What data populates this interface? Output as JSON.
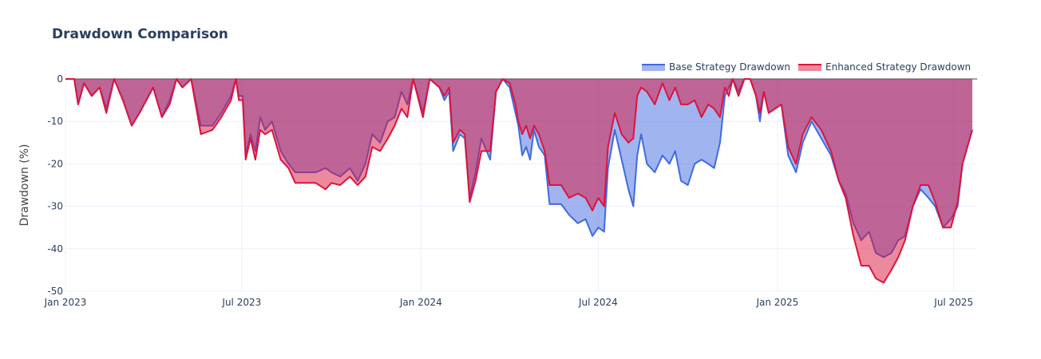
{
  "chart_data": {
    "type": "area",
    "title": "Drawdown Comparison",
    "xlabel": "",
    "ylabel": "Drawdown (%)",
    "ylim": [
      -50,
      0
    ],
    "yticks": [
      0,
      -10,
      -20,
      -30,
      -40,
      -50
    ],
    "xlim": [
      "2023-01-01",
      "2025-07-25"
    ],
    "xticks": [
      {
        "date": "2023-01-01",
        "label": "Jan 2023"
      },
      {
        "date": "2023-07-01",
        "label": "Jul 2023"
      },
      {
        "date": "2024-01-01",
        "label": "Jan 2024"
      },
      {
        "date": "2024-07-01",
        "label": "Jul 2024"
      },
      {
        "date": "2025-01-01",
        "label": "Jan 2025"
      },
      {
        "date": "2025-07-01",
        "label": "Jul 2025"
      }
    ],
    "grid": true,
    "legend_position": "top-right",
    "series": [
      {
        "name": "Base Strategy Drawdown",
        "color": "#4169e1",
        "fill": "rgba(65,105,225,0.5)",
        "points": [
          [
            "2023-01-01",
            0
          ],
          [
            "2023-01-10",
            0
          ],
          [
            "2023-01-14",
            -6
          ],
          [
            "2023-01-20",
            -1
          ],
          [
            "2023-01-28",
            -4
          ],
          [
            "2023-02-05",
            -2
          ],
          [
            "2023-02-12",
            -7
          ],
          [
            "2023-02-20",
            0
          ],
          [
            "2023-03-01",
            -5
          ],
          [
            "2023-03-10",
            -11
          ],
          [
            "2023-03-18",
            -8
          ],
          [
            "2023-03-25",
            -5
          ],
          [
            "2023-04-01",
            -2
          ],
          [
            "2023-04-10",
            -9
          ],
          [
            "2023-04-18",
            -5
          ],
          [
            "2023-04-25",
            0
          ],
          [
            "2023-05-01",
            -2
          ],
          [
            "2023-05-10",
            0
          ],
          [
            "2023-05-20",
            -11
          ],
          [
            "2023-06-01",
            -11
          ],
          [
            "2023-06-10",
            -8
          ],
          [
            "2023-06-20",
            -4
          ],
          [
            "2023-06-25",
            0
          ],
          [
            "2023-06-28",
            -4
          ],
          [
            "2023-07-02",
            -4
          ],
          [
            "2023-07-05",
            -18
          ],
          [
            "2023-07-10",
            -13
          ],
          [
            "2023-07-15",
            -17
          ],
          [
            "2023-07-20",
            -9
          ],
          [
            "2023-07-25",
            -12
          ],
          [
            "2023-08-01",
            -10
          ],
          [
            "2023-08-10",
            -17
          ],
          [
            "2023-08-18",
            -20
          ],
          [
            "2023-08-25",
            -22
          ],
          [
            "2023-09-01",
            -22
          ],
          [
            "2023-09-15",
            -22
          ],
          [
            "2023-09-25",
            -21
          ],
          [
            "2023-10-01",
            -22
          ],
          [
            "2023-10-10",
            -23
          ],
          [
            "2023-10-20",
            -21
          ],
          [
            "2023-10-28",
            -24
          ],
          [
            "2023-11-05",
            -20
          ],
          [
            "2023-11-12",
            -13
          ],
          [
            "2023-11-20",
            -15
          ],
          [
            "2023-11-28",
            -10
          ],
          [
            "2023-12-05",
            -9
          ],
          [
            "2023-12-12",
            -3
          ],
          [
            "2023-12-18",
            -6
          ],
          [
            "2023-12-24",
            0
          ],
          [
            "2024-01-03",
            -8
          ],
          [
            "2024-01-10",
            0
          ],
          [
            "2024-01-20",
            -2
          ],
          [
            "2024-01-25",
            -5
          ],
          [
            "2024-01-30",
            -3
          ],
          [
            "2024-02-03",
            -17
          ],
          [
            "2024-02-10",
            -13
          ],
          [
            "2024-02-15",
            -14
          ],
          [
            "2024-02-20",
            -28
          ],
          [
            "2024-02-26",
            -22
          ],
          [
            "2024-03-03",
            -14
          ],
          [
            "2024-03-12",
            -19
          ],
          [
            "2024-03-18",
            -3
          ],
          [
            "2024-03-25",
            0
          ],
          [
            "2024-04-01",
            -2
          ],
          [
            "2024-04-07",
            -8
          ],
          [
            "2024-04-10",
            -11
          ],
          [
            "2024-04-14",
            -18
          ],
          [
            "2024-04-18",
            -16
          ],
          [
            "2024-04-22",
            -19
          ],
          [
            "2024-04-26",
            -12
          ],
          [
            "2024-05-01",
            -16
          ],
          [
            "2024-05-07",
            -18
          ],
          [
            "2024-05-12",
            -29.5
          ],
          [
            "2024-05-24",
            -29.5
          ],
          [
            "2024-06-01",
            -32
          ],
          [
            "2024-06-10",
            -34
          ],
          [
            "2024-06-18",
            -33
          ],
          [
            "2024-06-25",
            -37
          ],
          [
            "2024-07-01",
            -35
          ],
          [
            "2024-07-07",
            -36
          ],
          [
            "2024-07-11",
            -21
          ],
          [
            "2024-07-18",
            -12
          ],
          [
            "2024-07-25",
            -19
          ],
          [
            "2024-08-01",
            -26
          ],
          [
            "2024-08-06",
            -30
          ],
          [
            "2024-08-10",
            -18
          ],
          [
            "2024-08-14",
            -13
          ],
          [
            "2024-08-20",
            -20
          ],
          [
            "2024-08-28",
            -22
          ],
          [
            "2024-09-05",
            -18
          ],
          [
            "2024-09-12",
            -20
          ],
          [
            "2024-09-18",
            -17
          ],
          [
            "2024-09-24",
            -24
          ],
          [
            "2024-10-01",
            -25
          ],
          [
            "2024-10-08",
            -20
          ],
          [
            "2024-10-15",
            -19
          ],
          [
            "2024-10-22",
            -20
          ],
          [
            "2024-10-28",
            -21
          ],
          [
            "2024-11-03",
            -15
          ],
          [
            "2024-11-08",
            -4
          ],
          [
            "2024-11-12",
            -2
          ],
          [
            "2024-11-16",
            0
          ],
          [
            "2024-11-22",
            -3
          ],
          [
            "2024-11-28",
            0
          ],
          [
            "2024-12-04",
            0
          ],
          [
            "2024-12-10",
            -4
          ],
          [
            "2024-12-14",
            -10
          ],
          [
            "2024-12-18",
            -3
          ],
          [
            "2024-12-23",
            -8
          ],
          [
            "2025-01-05",
            -6
          ],
          [
            "2025-01-12",
            -18
          ],
          [
            "2025-01-20",
            -22
          ],
          [
            "2025-01-27",
            -15
          ],
          [
            "2025-02-05",
            -10
          ],
          [
            "2025-02-15",
            -14
          ],
          [
            "2025-02-25",
            -18
          ],
          [
            "2025-03-05",
            -24
          ],
          [
            "2025-03-12",
            -27
          ],
          [
            "2025-03-20",
            -34
          ],
          [
            "2025-03-28",
            -38
          ],
          [
            "2025-04-05",
            -36
          ],
          [
            "2025-04-12",
            -41
          ],
          [
            "2025-04-20",
            -42
          ],
          [
            "2025-04-28",
            -41
          ],
          [
            "2025-05-05",
            -38
          ],
          [
            "2025-05-12",
            -37
          ],
          [
            "2025-05-20",
            -30
          ],
          [
            "2025-05-28",
            -26
          ],
          [
            "2025-06-05",
            -28
          ],
          [
            "2025-06-12",
            -30
          ],
          [
            "2025-06-20",
            -35
          ],
          [
            "2025-06-28",
            -33
          ],
          [
            "2025-07-05",
            -30
          ],
          [
            "2025-07-10",
            -20
          ],
          [
            "2025-07-15",
            -16
          ],
          [
            "2025-07-20",
            -12
          ]
        ]
      },
      {
        "name": "Enhanced Strategy Drawdown",
        "color": "#dc143c",
        "fill": "rgba(220,20,60,0.5)",
        "points": [
          [
            "2023-01-01",
            0
          ],
          [
            "2023-01-10",
            0
          ],
          [
            "2023-01-14",
            -6
          ],
          [
            "2023-01-20",
            -1
          ],
          [
            "2023-01-28",
            -4
          ],
          [
            "2023-02-05",
            -2
          ],
          [
            "2023-02-12",
            -8
          ],
          [
            "2023-02-20",
            0
          ],
          [
            "2023-03-01",
            -5
          ],
          [
            "2023-03-10",
            -11
          ],
          [
            "2023-03-18",
            -8
          ],
          [
            "2023-03-25",
            -5
          ],
          [
            "2023-04-01",
            -2
          ],
          [
            "2023-04-10",
            -9
          ],
          [
            "2023-04-18",
            -6
          ],
          [
            "2023-04-25",
            0
          ],
          [
            "2023-05-01",
            -2
          ],
          [
            "2023-05-10",
            0
          ],
          [
            "2023-05-20",
            -13
          ],
          [
            "2023-06-01",
            -12
          ],
          [
            "2023-06-10",
            -9
          ],
          [
            "2023-06-20",
            -5
          ],
          [
            "2023-06-25",
            0
          ],
          [
            "2023-06-28",
            -5
          ],
          [
            "2023-07-02",
            -5
          ],
          [
            "2023-07-05",
            -19
          ],
          [
            "2023-07-10",
            -14
          ],
          [
            "2023-07-15",
            -19
          ],
          [
            "2023-07-20",
            -12
          ],
          [
            "2023-07-25",
            -13
          ],
          [
            "2023-08-01",
            -12
          ],
          [
            "2023-08-10",
            -19
          ],
          [
            "2023-08-18",
            -21
          ],
          [
            "2023-08-25",
            -24.5
          ],
          [
            "2023-09-01",
            -24.5
          ],
          [
            "2023-09-15",
            -24.5
          ],
          [
            "2023-09-25",
            -26
          ],
          [
            "2023-10-01",
            -24.5
          ],
          [
            "2023-10-10",
            -25
          ],
          [
            "2023-10-20",
            -23
          ],
          [
            "2023-10-28",
            -25
          ],
          [
            "2023-11-05",
            -23
          ],
          [
            "2023-11-12",
            -16
          ],
          [
            "2023-11-20",
            -17
          ],
          [
            "2023-11-28",
            -14
          ],
          [
            "2023-12-05",
            -11
          ],
          [
            "2023-12-12",
            -7
          ],
          [
            "2023-12-18",
            -9
          ],
          [
            "2023-12-24",
            0
          ],
          [
            "2024-01-03",
            -9
          ],
          [
            "2024-01-10",
            0
          ],
          [
            "2024-01-20",
            -2
          ],
          [
            "2024-01-25",
            -4
          ],
          [
            "2024-01-30",
            -2
          ],
          [
            "2024-02-03",
            -15
          ],
          [
            "2024-02-10",
            -12
          ],
          [
            "2024-02-15",
            -13
          ],
          [
            "2024-02-20",
            -29
          ],
          [
            "2024-02-26",
            -24
          ],
          [
            "2024-03-03",
            -17
          ],
          [
            "2024-03-12",
            -17
          ],
          [
            "2024-03-18",
            -3
          ],
          [
            "2024-03-25",
            0
          ],
          [
            "2024-04-01",
            -1
          ],
          [
            "2024-04-07",
            -6
          ],
          [
            "2024-04-10",
            -10
          ],
          [
            "2024-04-14",
            -13
          ],
          [
            "2024-04-18",
            -11
          ],
          [
            "2024-04-22",
            -14
          ],
          [
            "2024-04-26",
            -11
          ],
          [
            "2024-05-01",
            -13
          ],
          [
            "2024-05-07",
            -17
          ],
          [
            "2024-05-12",
            -25
          ],
          [
            "2024-05-24",
            -25
          ],
          [
            "2024-06-01",
            -28
          ],
          [
            "2024-06-10",
            -27
          ],
          [
            "2024-06-18",
            -28
          ],
          [
            "2024-06-25",
            -31
          ],
          [
            "2024-07-01",
            -28
          ],
          [
            "2024-07-07",
            -30
          ],
          [
            "2024-07-11",
            -16
          ],
          [
            "2024-07-18",
            -8
          ],
          [
            "2024-07-25",
            -13
          ],
          [
            "2024-08-01",
            -15
          ],
          [
            "2024-08-06",
            -14
          ],
          [
            "2024-08-10",
            -4
          ],
          [
            "2024-08-14",
            -2
          ],
          [
            "2024-08-20",
            -3
          ],
          [
            "2024-08-28",
            -6
          ],
          [
            "2024-09-05",
            -1
          ],
          [
            "2024-09-12",
            -5
          ],
          [
            "2024-09-18",
            -2
          ],
          [
            "2024-09-24",
            -6
          ],
          [
            "2024-10-01",
            -6
          ],
          [
            "2024-10-08",
            -5
          ],
          [
            "2024-10-15",
            -9
          ],
          [
            "2024-10-22",
            -6
          ],
          [
            "2024-10-28",
            -7
          ],
          [
            "2024-11-03",
            -9
          ],
          [
            "2024-11-08",
            -2
          ],
          [
            "2024-11-12",
            -4
          ],
          [
            "2024-11-16",
            0
          ],
          [
            "2024-11-22",
            -4
          ],
          [
            "2024-11-28",
            0
          ],
          [
            "2024-12-04",
            0
          ],
          [
            "2024-12-10",
            -4
          ],
          [
            "2024-12-14",
            -8
          ],
          [
            "2024-12-18",
            -3
          ],
          [
            "2024-12-23",
            -8
          ],
          [
            "2025-01-05",
            -6
          ],
          [
            "2025-01-12",
            -16
          ],
          [
            "2025-01-20",
            -20
          ],
          [
            "2025-01-27",
            -13
          ],
          [
            "2025-02-05",
            -9
          ],
          [
            "2025-02-15",
            -12
          ],
          [
            "2025-02-25",
            -17
          ],
          [
            "2025-03-05",
            -24
          ],
          [
            "2025-03-12",
            -28
          ],
          [
            "2025-03-20",
            -37
          ],
          [
            "2025-03-28",
            -44
          ],
          [
            "2025-04-05",
            -44
          ],
          [
            "2025-04-12",
            -47
          ],
          [
            "2025-04-20",
            -48
          ],
          [
            "2025-04-28",
            -45
          ],
          [
            "2025-05-05",
            -42
          ],
          [
            "2025-05-12",
            -38
          ],
          [
            "2025-05-20",
            -30
          ],
          [
            "2025-05-28",
            -25
          ],
          [
            "2025-06-05",
            -25
          ],
          [
            "2025-06-12",
            -29
          ],
          [
            "2025-06-20",
            -35
          ],
          [
            "2025-06-28",
            -35
          ],
          [
            "2025-07-05",
            -29
          ],
          [
            "2025-07-10",
            -20
          ],
          [
            "2025-07-15",
            -16
          ],
          [
            "2025-07-20",
            -12
          ]
        ]
      }
    ]
  }
}
